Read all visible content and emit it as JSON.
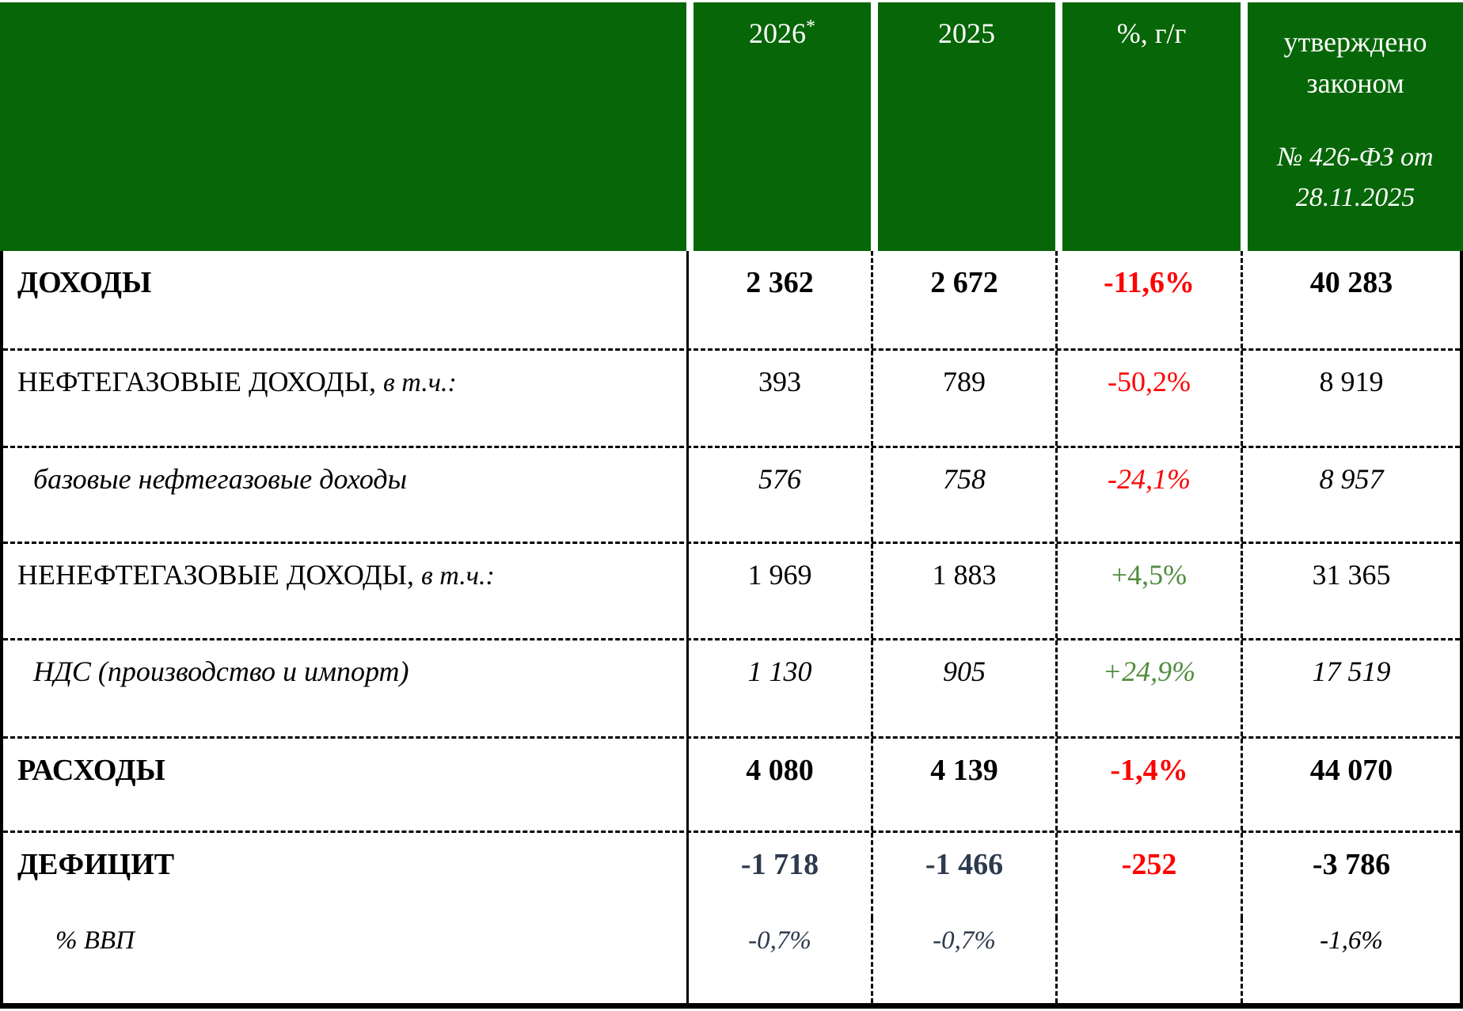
{
  "colors": {
    "header_bg": "#076607",
    "header_text": "#ffffff",
    "negative": "#ff0000",
    "positive": "#518c3e",
    "deficit_navy": "#2e3a4d",
    "body_text": "#000000"
  },
  "header": {
    "col_2026_year": "2026",
    "col_2026_asterisk": "*",
    "col_2025": "2025",
    "col_yoy": "%, г/г",
    "col_law_title": "утверждено законом",
    "col_law_ref": "№ 426-ФЗ от 28.11.2025"
  },
  "rows": [
    {
      "label": "ДОХОДЫ",
      "v2026": "2 362",
      "v2025": "2 672",
      "yoy": "-11,6%",
      "law": "40 283"
    },
    {
      "label": "НЕФТЕГАЗОВЫЕ ДОХОДЫ,",
      "suffix": "в т.ч.:",
      "v2026": "393",
      "v2025": "789",
      "yoy": "-50,2%",
      "law": "8 919"
    },
    {
      "label": "базовые нефтегазовые доходы",
      "v2026": "576",
      "v2025": "758",
      "yoy": "-24,1%",
      "law": "8 957"
    },
    {
      "label": "НЕНЕФТЕГАЗОВЫЕ ДОХОДЫ,",
      "suffix": "в т.ч.:",
      "v2026": "1 969",
      "v2025": "1 883",
      "yoy": "+4,5%",
      "law": "31 365"
    },
    {
      "label": "НДС (производство и импорт)",
      "v2026": "1 130",
      "v2025": "905",
      "yoy": "+24,9%",
      "law": "17 519"
    },
    {
      "label": "РАСХОДЫ",
      "v2026": "4 080",
      "v2025": "4 139",
      "yoy": "-1,4%",
      "law": "44 070"
    },
    {
      "label": "ДЕФИЦИТ",
      "v2026": "-1 718",
      "v2025": "-1 466",
      "yoy": "-252",
      "law": "-3 786"
    },
    {
      "label": "% ВВП",
      "v2026": "-0,7%",
      "v2025": "-0,7%",
      "yoy": "",
      "law": "-1,6%"
    }
  ],
  "chart_data": {
    "type": "table",
    "columns": [
      "",
      "2026*",
      "2025",
      "%, г/г",
      "утверждено законом № 426-ФЗ от 28.11.2025"
    ],
    "rows": [
      [
        "ДОХОДЫ",
        "2 362",
        "2 672",
        "-11,6%",
        "40 283"
      ],
      [
        "НЕФТЕГАЗОВЫЕ ДОХОДЫ, в т.ч.:",
        "393",
        "789",
        "-50,2%",
        "8 919"
      ],
      [
        "базовые нефтегазовые доходы",
        "576",
        "758",
        "-24,1%",
        "8 957"
      ],
      [
        "НЕНЕФТЕГАЗОВЫЕ ДОХОДЫ, в т.ч.:",
        "1 969",
        "1 883",
        "+4,5%",
        "31 365"
      ],
      [
        "НДС (производство и импорт)",
        "1 130",
        "905",
        "+24,9%",
        "17 519"
      ],
      [
        "РАСХОДЫ",
        "4 080",
        "4 139",
        "-1,4%",
        "44 070"
      ],
      [
        "ДЕФИЦИТ",
        "-1 718",
        "-1 466",
        "-252",
        "-3 786"
      ],
      [
        "% ВВП",
        "-0,7%",
        "-0,7%",
        "",
        "-1,6%"
      ]
    ],
    "notes": "Budget table; negative y/y changes shown in red, positive in green; deficit values for 2026/2025 shown in dark navy"
  }
}
